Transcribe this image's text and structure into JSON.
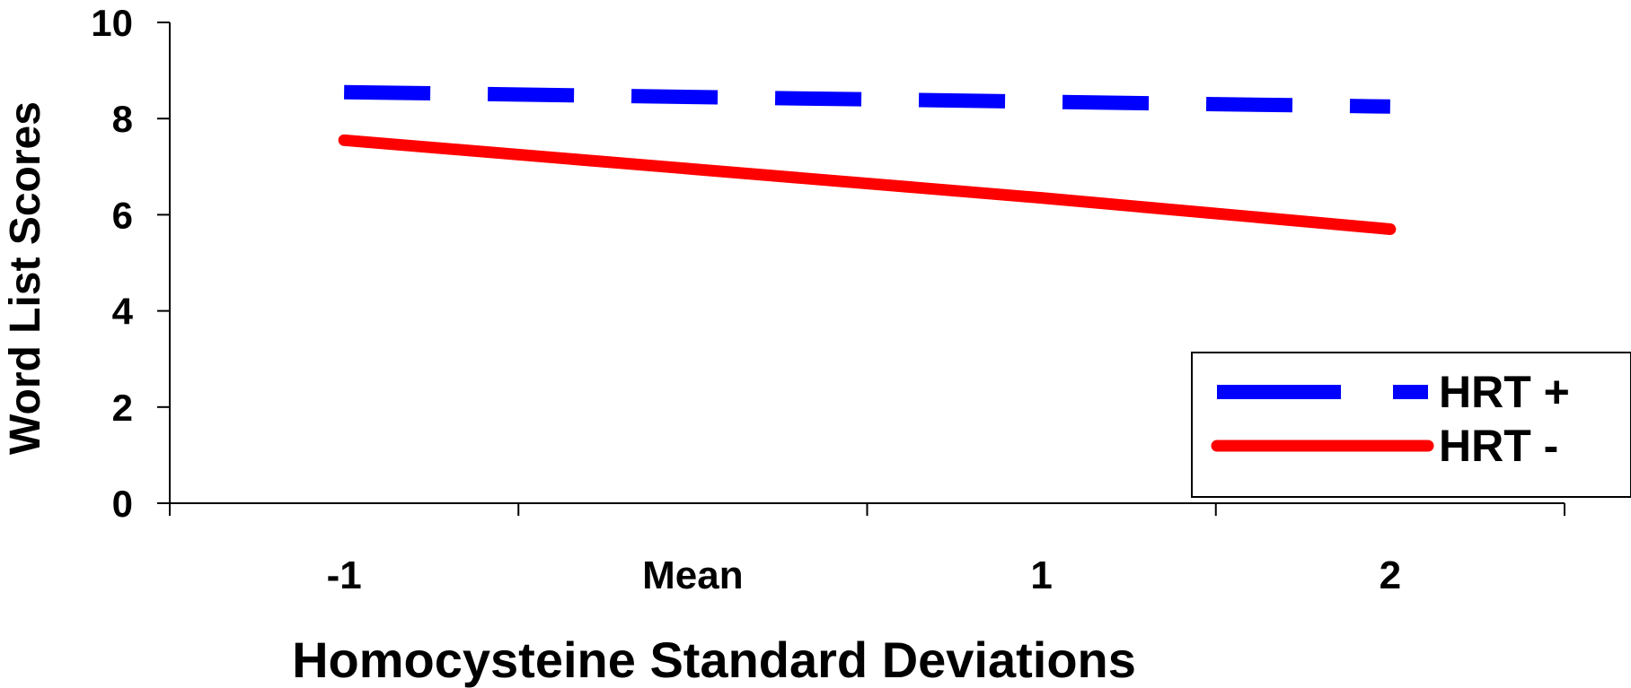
{
  "chart_data": {
    "type": "line",
    "title": "",
    "xlabel": "Homocysteine Standard Deviations",
    "ylabel": "Word List Scores",
    "categories": [
      "-1",
      "Mean",
      "1",
      "2"
    ],
    "yticks": [
      "0",
      "2",
      "4",
      "6",
      "8",
      "10"
    ],
    "ylim": [
      0,
      10
    ],
    "grid": false,
    "legend_position": "bottom-right",
    "series": [
      {
        "name": "HRT +",
        "values": [
          8.55,
          8.45,
          8.35,
          8.25
        ],
        "color": "#0000ff",
        "style": "dashed"
      },
      {
        "name": "HRT -",
        "values": [
          7.55,
          6.95,
          6.35,
          5.7
        ],
        "color": "#ff0000",
        "style": "solid"
      }
    ]
  }
}
